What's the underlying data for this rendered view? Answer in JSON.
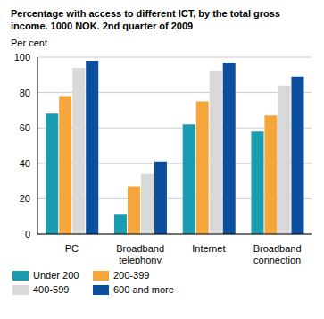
{
  "chart_data": {
    "type": "bar",
    "title": "Percentage with access to different ICT, by the total gross income. 1000 NOK. 2nd quarter of 2009",
    "ylabel": "Per cent",
    "categories": [
      "PC",
      "Broadband telephony",
      "Internet",
      "Broadband connection"
    ],
    "series": [
      {
        "name": "Under 200",
        "color": "#1a9bb0",
        "values": [
          68,
          11,
          62,
          58
        ]
      },
      {
        "name": "200-399",
        "color": "#f5a63b",
        "values": [
          78,
          27,
          75,
          67
        ]
      },
      {
        "name": "400-599",
        "color": "#d9d9d9",
        "values": [
          94,
          34,
          92,
          84
        ]
      },
      {
        "name": "600 and more",
        "color": "#0b4f9e",
        "values": [
          98,
          41,
          97,
          89
        ]
      }
    ],
    "ylim": [
      0,
      100
    ],
    "yticks": [
      0,
      20,
      40,
      60,
      80,
      100
    ],
    "grid": true,
    "legend": "bottom"
  }
}
